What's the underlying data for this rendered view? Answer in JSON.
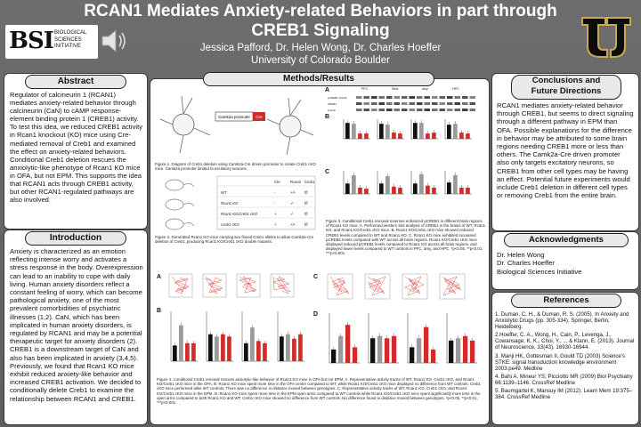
{
  "header": {
    "title_line1": "RCAN1 Mediates Anxiety-related Behaviors in part through",
    "title_line2": "CREB1 Signaling",
    "authors": "Jessica Pafford, Dr. Helen Wong, Dr. Charles Hoeffer",
    "affiliation": "University of Colorado Boulder"
  },
  "logos": {
    "bsi_mark": "BSI",
    "bsi_line1": "BIOLOGICAL",
    "bsi_line2": "SCIENCES",
    "bsi_line3": "INITIATIVE",
    "speaker_icon": "speaker-icon",
    "cu_logo": "cu-buffs-logo"
  },
  "abstract": {
    "title": "Abstract",
    "text": "Regulator of calcineurin 1 (RCAN1) mediates anxiety-related behavior through calcineurin (CaN) to cAMP response-element binding protein 1 (CREB1) activity. To test this idea, we reduced CREB1 activity in Rcan1 knockout (KO) mice using Cre-mediated removal of Creb1 and examined the effect on anxiety-related behaviors. Conditional Creb1 deletion rescues the anxiolytic-like phenotype of Rcan1 KO mice in OFA, but not EPM. This supports the idea that RCAN1 acts through CREB1 activity, but other RCAN1-regulated pathways are also involved."
  },
  "introduction": {
    "title": "Introduction",
    "text": "Anxiety is characterized as an emotion reflecting intense worry and activates a stress response in the body. Overexpression can lead to an inability to cope with daily living. Human anxiety disorders reflect a constant feeling of worry, which can become pathological anxiety, one of the most prevalent comorbidities of psychiatric illnesses (1,2). CaN, which has been implicated in human anxiety disorders, is regulated by RCAN1 and may be a potential therapeutic target for anxiety disorders (2). CREB1 is a downstream target of CaN and also has been implicated in anxiety (3,4,5). Previously, we found that Rcan1 KO mice exhibit reduced anxiety-like behavior and increased CREB1 activation. We decided to conditionally delete Creb1 to examine the relationship between RCAN1 and CREB1."
  },
  "methods": {
    "title": "Methods/Results",
    "fig1_caption": "Figure 1. Diagram of Creb1 deletion using Camk2a-Cre driven promoter to create Creb1 cKO mice. Camk2a promoter limited to excitatory neurons.",
    "fig1_label_promoter": "Camk2a promoter",
    "fig1_label_cre": "Cre",
    "fig2_caption": "Figure 2. Generated Rcan1 KO mice carrying two floxed Creb1 alleles to allow Camk2a-Cre deletion of Creb1, producing Rcan1 KO/Creb1 cKO double mutants.",
    "fig2_table": {
      "headers": [
        "",
        "Cre",
        "Rcan1",
        "Creb1"
      ],
      "rows": [
        [
          "WT",
          "-",
          "+/+",
          "f/f"
        ],
        [
          "Rcan1 KO",
          "-",
          "-/-",
          "f/f"
        ],
        [
          "Rcan1 KO/Creb1 cKO",
          "+",
          "-/-",
          "f/f"
        ],
        [
          "Creb1 cKO",
          "+",
          "+/+",
          "f/f"
        ]
      ]
    },
    "fig3_caption": "Figure 3. Conditional Creb1 removal reverses enhanced pCREB1 in different brain regions of Rcan1 KO mice. A. Performed western blot analysis of CREB1 in the brains of WT, Rcan1 KO, and Rcan1 KO/Creb1 cKO mice. B. Rcan1 KO/Creb1 cKO mice showed reduced CREB1 levels compared to WT and Rcan1 KO. C. Rcan1 KO mice exhibited increased pCREB1 levels compared with WT across all brain regions. Rcan1 KO/Creb1 cKO mice displayed reduced pCREB1 levels compared to Rcan1 KO across all brain regions, and displayed lower levels compared to WT controls in PFC, amy, and HPC. *p<0.05, **p<0.01, ***p<0.001.",
    "fig3_blot_regions": [
      "PFC",
      "Stria",
      "amy",
      "HPC"
    ],
    "fig3_blot_rows": [
      "pCREB1 (S133)",
      "CREB1",
      "β-actin"
    ],
    "fig4_caption": "Figure 4. Conditional Creb1 removal rescues anxiolytic-like behavior of Rcan1 KO mice in OFA but not EPM. A. Representative activity tracks of WT, Rcan1 KO, Creb1 cKO, and Rcan1 KO/Creb1 cKO mice in the OFA. B. Rcan1 KO mice spent more time in the OFA center compared to WT, while Rcan1 KO/Creb1 cKO mice displayed no difference from WT controls. Creb1 cKO mice performed alike WT controls. There was no difference in distance moved between genotypes. C. Representative activity tracks of WT, Rcan1 KO, Creb1 cKO, and Rcan1 KO/Creb1 cKO mice in the EPM. D. Rcan1 KO mice spent more time in the EPM open arms compared to WT controls while Rcan1 KO/Creb1 cKO mice spent significantly more time in the open arms compared to both Rcan1 KO and WT. Creb1 cKO mice showed no difference from WT controls. No difference found in distance moved between genotypes. *p<0.05, **p<0.01, ***p<0.001.",
    "letters": [
      "A",
      "B",
      "C",
      "A",
      "B",
      "C",
      "D"
    ]
  },
  "conclusions": {
    "title_line1": "Conclusions and",
    "title_line2": "Future Directions",
    "text": "RCAN1 mediates anxiety-related behavior through CREB1, but seems to direct signaling through a different pathway in EPM than OFA. Possible explanations for the difference in behavior may be attributed to some brain regions needing CREB1 more or less than others. The Camk2a-Cre driven promoter also only targets excitatory neurons, so CREB1 from other cell types may be having an effect. Potential future experiments would include Creb1 deletion in different cell types or removing Creb1 from the entire brain."
  },
  "acknowledgments": {
    "title": "Acknowledgments",
    "lines": [
      "Dr. Helen Wong",
      "Dr. Charles Hoeffer",
      "Biological Sciences Initiative"
    ]
  },
  "references": {
    "title": "References",
    "items": [
      "1. Duman, C. H., & Duman, R. S. (2005). In Anxiety and Anxiolytic Drugs (pp. 305-334). Springer, Berlin, Heidelberg.",
      "2.Hoeffer, C. A., Wong, H., Cain, P., Levenga, J., Cowansage, K. K., Choi, Y., ... & Klann, E. (2013). Journal of Neuroscience, 33(43), 16930-16944.",
      "3. Manji HK, Gottesman II, Gould TD (2003) Science's STKE: signal transduction knowledge environment 2003:pe49. Medline",
      "4. Bahi A, Mineur YS, Picciotto MR (2009) Biol Psychiatry 66:1139–1146. CrossRef Medline",
      "5. Baumgartel K, Mansuy IM (2012). Learn Mem 19:375–384. CrossRef Medline"
    ]
  },
  "colors": {
    "bar_black": "#111111",
    "bar_red": "#d42a2a",
    "bar_gray": "#9a9a9a",
    "background": "#666666"
  }
}
